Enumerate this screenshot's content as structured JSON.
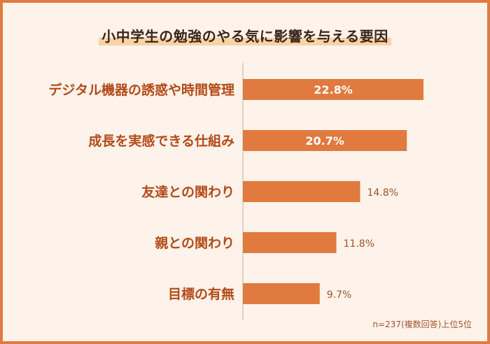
{
  "title": "小中学生の勉強のやる気に影響を与える要因",
  "footnote": "n=237(複数回答)上位5位",
  "colors": {
    "bar": "#e07a3f",
    "category_text": "#b34a18",
    "inside_label": "#ffffff",
    "outside_label": "#a0522d",
    "border": "#e07a3f",
    "background": "#fdf3ea"
  },
  "chart_data": {
    "type": "bar",
    "orientation": "horizontal",
    "categories": [
      "デジタル機器の誘惑や時間管理",
      "成長を実感できる仕組み",
      "友達との関わり",
      "親との関わり",
      "目標の有無"
    ],
    "values": [
      22.8,
      20.7,
      14.8,
      11.8,
      9.7
    ],
    "value_labels": [
      "22.8%",
      "20.7%",
      "14.8%",
      "11.8%",
      "9.7%"
    ],
    "unit": "%",
    "grid": false,
    "legend": "none"
  }
}
